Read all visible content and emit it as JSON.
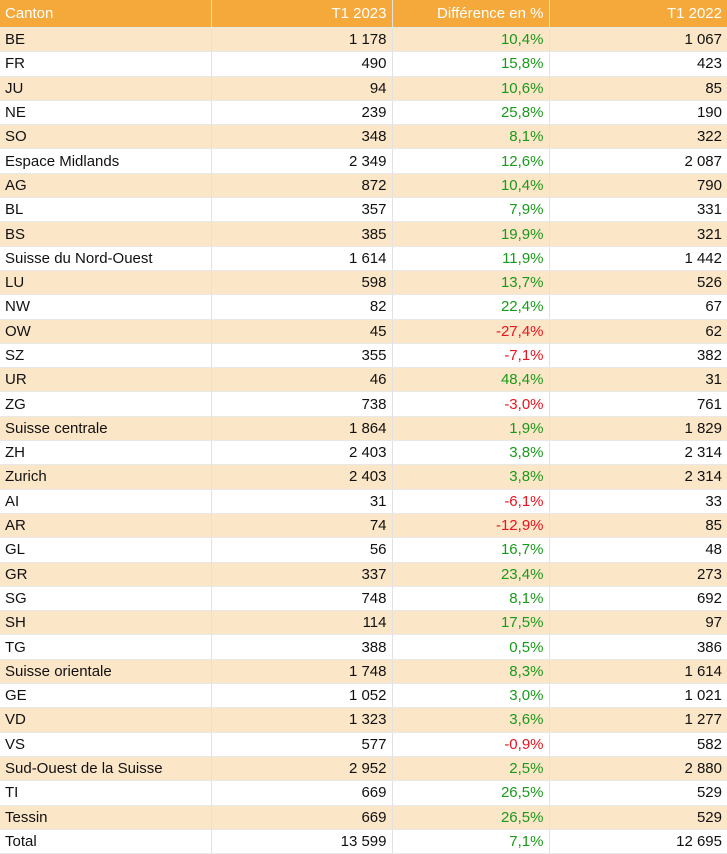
{
  "header": {
    "canton": "Canton",
    "t1_2023": "T1 2023",
    "diff": "Différence en %",
    "t1_2022": "T1 2022"
  },
  "colors": {
    "header_bg": "#f6a93b",
    "band": "#fbe6c8",
    "positive": "#1a9a1a",
    "negative": "#e8141e"
  },
  "rows": [
    {
      "canton": "BE",
      "t1_2023": "1 178",
      "diff": "10,4%",
      "t1_2022": "1 067",
      "sign": "pos"
    },
    {
      "canton": "FR",
      "t1_2023": "490",
      "diff": "15,8%",
      "t1_2022": "423",
      "sign": "pos"
    },
    {
      "canton": "JU",
      "t1_2023": "94",
      "diff": "10,6%",
      "t1_2022": "85",
      "sign": "pos"
    },
    {
      "canton": "NE",
      "t1_2023": "239",
      "diff": "25,8%",
      "t1_2022": "190",
      "sign": "pos"
    },
    {
      "canton": "SO",
      "t1_2023": "348",
      "diff": "8,1%",
      "t1_2022": "322",
      "sign": "pos"
    },
    {
      "canton": "Espace Midlands",
      "t1_2023": "2 349",
      "diff": "12,6%",
      "t1_2022": "2 087",
      "sign": "pos"
    },
    {
      "canton": "AG",
      "t1_2023": "872",
      "diff": "10,4%",
      "t1_2022": "790",
      "sign": "pos"
    },
    {
      "canton": "BL",
      "t1_2023": "357",
      "diff": "7,9%",
      "t1_2022": "331",
      "sign": "pos"
    },
    {
      "canton": "BS",
      "t1_2023": "385",
      "diff": "19,9%",
      "t1_2022": "321",
      "sign": "pos"
    },
    {
      "canton": "Suisse du Nord-Ouest",
      "t1_2023": "1 614",
      "diff": "11,9%",
      "t1_2022": "1 442",
      "sign": "pos"
    },
    {
      "canton": "LU",
      "t1_2023": "598",
      "diff": "13,7%",
      "t1_2022": "526",
      "sign": "pos"
    },
    {
      "canton": "NW",
      "t1_2023": "82",
      "diff": "22,4%",
      "t1_2022": "67",
      "sign": "pos"
    },
    {
      "canton": "OW",
      "t1_2023": "45",
      "diff": "-27,4%",
      "t1_2022": "62",
      "sign": "neg"
    },
    {
      "canton": "SZ",
      "t1_2023": "355",
      "diff": "-7,1%",
      "t1_2022": "382",
      "sign": "neg"
    },
    {
      "canton": "UR",
      "t1_2023": "46",
      "diff": "48,4%",
      "t1_2022": "31",
      "sign": "pos"
    },
    {
      "canton": "ZG",
      "t1_2023": "738",
      "diff": "-3,0%",
      "t1_2022": "761",
      "sign": "neg"
    },
    {
      "canton": "Suisse centrale",
      "t1_2023": "1 864",
      "diff": "1,9%",
      "t1_2022": "1 829",
      "sign": "pos"
    },
    {
      "canton": "ZH",
      "t1_2023": "2 403",
      "diff": "3,8%",
      "t1_2022": "2 314",
      "sign": "pos"
    },
    {
      "canton": "Zurich",
      "t1_2023": "2 403",
      "diff": "3,8%",
      "t1_2022": "2 314",
      "sign": "pos"
    },
    {
      "canton": "AI",
      "t1_2023": "31",
      "diff": "-6,1%",
      "t1_2022": "33",
      "sign": "neg"
    },
    {
      "canton": "AR",
      "t1_2023": "74",
      "diff": "-12,9%",
      "t1_2022": "85",
      "sign": "neg"
    },
    {
      "canton": "GL",
      "t1_2023": "56",
      "diff": "16,7%",
      "t1_2022": "48",
      "sign": "pos"
    },
    {
      "canton": "GR",
      "t1_2023": "337",
      "diff": "23,4%",
      "t1_2022": "273",
      "sign": "pos"
    },
    {
      "canton": "SG",
      "t1_2023": "748",
      "diff": "8,1%",
      "t1_2022": "692",
      "sign": "pos"
    },
    {
      "canton": "SH",
      "t1_2023": "114",
      "diff": "17,5%",
      "t1_2022": "97",
      "sign": "pos"
    },
    {
      "canton": "TG",
      "t1_2023": "388",
      "diff": "0,5%",
      "t1_2022": "386",
      "sign": "pos"
    },
    {
      "canton": "Suisse orientale",
      "t1_2023": "1 748",
      "diff": "8,3%",
      "t1_2022": "1 614",
      "sign": "pos"
    },
    {
      "canton": "GE",
      "t1_2023": "1 052",
      "diff": "3,0%",
      "t1_2022": "1 021",
      "sign": "pos"
    },
    {
      "canton": "VD",
      "t1_2023": "1 323",
      "diff": "3,6%",
      "t1_2022": "1 277",
      "sign": "pos"
    },
    {
      "canton": "VS",
      "t1_2023": "577",
      "diff": "-0,9%",
      "t1_2022": "582",
      "sign": "neg"
    },
    {
      "canton": "Sud-Ouest de la Suisse",
      "t1_2023": "2 952",
      "diff": "2,5%",
      "t1_2022": "2 880",
      "sign": "pos"
    },
    {
      "canton": "TI",
      "t1_2023": "669",
      "diff": "26,5%",
      "t1_2022": "529",
      "sign": "pos"
    },
    {
      "canton": "Tessin",
      "t1_2023": "669",
      "diff": "26,5%",
      "t1_2022": "529",
      "sign": "pos"
    },
    {
      "canton": "Total",
      "t1_2023": "13 599",
      "diff": "7,1%",
      "t1_2022": "12 695",
      "sign": "pos"
    }
  ]
}
